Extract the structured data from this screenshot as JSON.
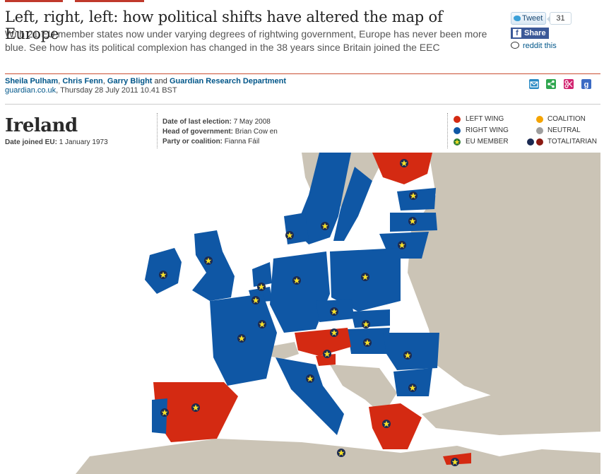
{
  "article": {
    "headline": "Left, right, left: how political shifts have altered the map of Europe",
    "standfirst": "With 21 EU member states now under varying degrees of rightwing government, Europe has never been more blue. See how has its political complexion has changed in the 38 years since Britain joined the EEC",
    "authors": [
      "Sheila Pulham",
      "Chris Fenn",
      "Garry Blight",
      "Guardian Research Department"
    ],
    "and_word": "and",
    "site": "guardian.co.uk",
    "date": ", Thursday 28 July 2011 10.41 BST"
  },
  "share": {
    "tweet_label": "Tweet",
    "tweet_count": "31",
    "facebook_label": "Share",
    "reddit_label": "reddit this"
  },
  "tools": [
    "email-icon",
    "share-icon",
    "clip-icon",
    "google-icon"
  ],
  "country": {
    "name": "Ireland",
    "joined_label": "Date joined EU:",
    "joined_value": "1 January 1973",
    "election_label": "Date of last election:",
    "election_value": "7 May 2008",
    "head_label": "Head of government:",
    "head_value": "Brian Cow en",
    "party_label": "Party or coalition:",
    "party_value": "Fianna Fáil"
  },
  "legend": {
    "left_wing": "LEFT WING",
    "right_wing": "RIGHT WING",
    "eu_member": "EU MEMBER",
    "coalition": "COALITION",
    "neutral": "NEUTRAL",
    "totalitarian": "TOTALITARIAN"
  },
  "colors": {
    "left": "#d42a12",
    "right": "#0f57a5",
    "coalition": "#f5a400",
    "neutral": "#9e9e9e",
    "land": "#cbc4b6",
    "sea": "#ffffff",
    "totalitarian_a": "#1b2a52",
    "totalitarian_b": "#8b1a12",
    "accent_red": "#c94f33"
  }
}
